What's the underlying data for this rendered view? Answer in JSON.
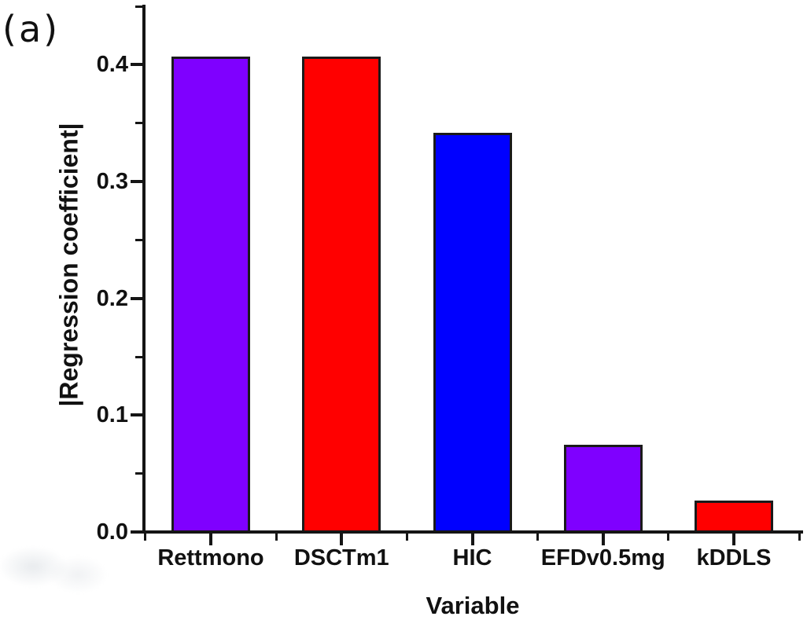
{
  "panel_label": "(a)",
  "chart_data": {
    "type": "bar",
    "title": "",
    "xlabel": "Variable",
    "ylabel": "|Regression coefficient|",
    "categories": [
      "Rettmono",
      "DSCTm1",
      "HIC",
      "EFDv0.5mg",
      "kDDLS"
    ],
    "values": [
      0.407,
      0.407,
      0.342,
      0.075,
      0.027
    ],
    "bar_colors": [
      "#7F00FF",
      "#FF0000",
      "#0000FF",
      "#7F00FF",
      "#FF0000"
    ],
    "bar_border_color": "#1a1a1a",
    "axis_color": "#151515",
    "ylim": [
      0,
      0.45
    ],
    "yticks": [
      0.0,
      0.1,
      0.2,
      0.3,
      0.4
    ],
    "ytick_labels": [
      "0.0",
      "0.1",
      "0.2",
      "0.3",
      "0.4"
    ],
    "minor_ytick_step": 0.05,
    "grid": false,
    "legend": null
  }
}
